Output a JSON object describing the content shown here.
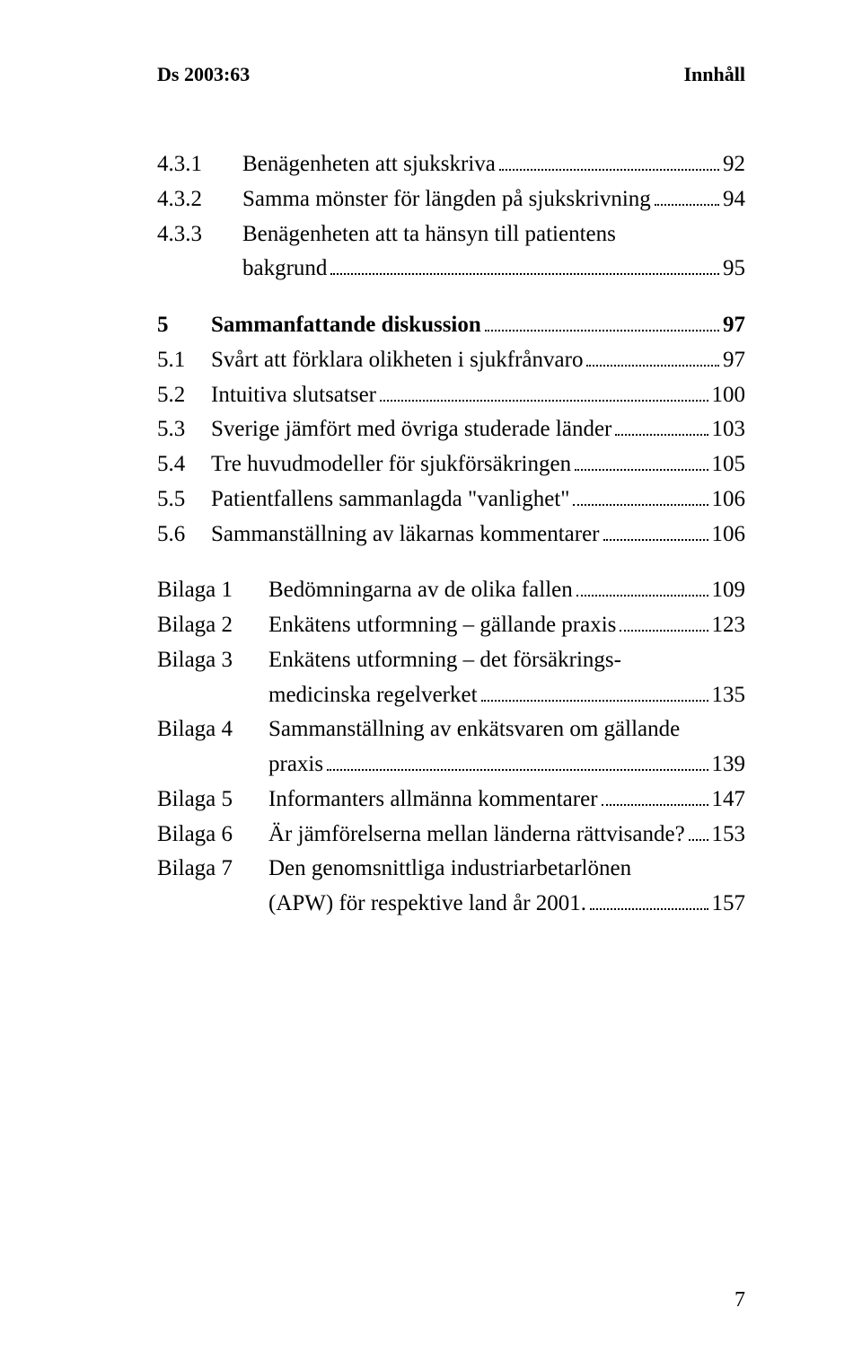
{
  "header": {
    "left": "Ds 2003:63",
    "right": "Innhåll"
  },
  "toc": [
    {
      "type": "row",
      "indent": "indent",
      "num": "4.3.1",
      "label": "Benägenheten att sjukskriva",
      "page": "92"
    },
    {
      "type": "row",
      "indent": "indent",
      "num": "4.3.2",
      "label": "Samma mönster för längden på sjukskrivning",
      "page": "94"
    },
    {
      "type": "row-multi",
      "indent": "indent",
      "num": "4.3.3",
      "lines": [
        "Benägenheten att ta hänsyn till patientens"
      ],
      "lastLabel": "bakgrund",
      "page": "95",
      "contClass": "cont2"
    },
    {
      "type": "gap"
    },
    {
      "type": "row",
      "bold": true,
      "num": "5",
      "label": "Sammanfattande diskussion",
      "page": "97"
    },
    {
      "type": "row",
      "num": "5.1",
      "label": "Svårt att förklara olikheten i sjukfrånvaro",
      "page": "97"
    },
    {
      "type": "row",
      "num": "5.2",
      "label": "Intuitiva slutsatser",
      "page": "100"
    },
    {
      "type": "row",
      "num": "5.3",
      "label": "Sverige jämfört med övriga studerade länder",
      "page": "103"
    },
    {
      "type": "row",
      "num": "5.4",
      "label": "Tre huvudmodeller för sjukförsäkringen",
      "page": "105"
    },
    {
      "type": "row",
      "num": "5.5",
      "label": "Patientfallens sammanlagda \"vanlighet\"",
      "page": "106"
    },
    {
      "type": "row",
      "num": "5.6",
      "label": "Sammanställning av läkarnas kommentarer",
      "page": "106"
    },
    {
      "type": "gap"
    },
    {
      "type": "row",
      "indent": "bilaga",
      "num": "Bilaga 1",
      "label": "Bedömningarna av de olika fallen",
      "page": "109"
    },
    {
      "type": "row",
      "indent": "bilaga",
      "num": "Bilaga 2",
      "label": "Enkätens utformning – gällande praxis",
      "page": "123"
    },
    {
      "type": "row-multi",
      "indent": "bilaga",
      "num": "Bilaga 3",
      "lines": [
        "Enkätens utformning – det försäkrings-"
      ],
      "lastLabel": "medicinska regelverket",
      "page": "135",
      "contClass": "cont"
    },
    {
      "type": "row-multi",
      "indent": "bilaga",
      "num": "Bilaga 4",
      "lines": [
        "Sammanställning av enkätsvaren om gällande"
      ],
      "lastLabel": "praxis",
      "page": "139",
      "contClass": "cont"
    },
    {
      "type": "row",
      "indent": "bilaga",
      "num": "Bilaga 5",
      "label": "Informanters allmänna kommentarer",
      "page": "147"
    },
    {
      "type": "row",
      "indent": "bilaga",
      "num": "Bilaga 6",
      "label": "Är jämförelserna mellan länderna rättvisande?",
      "page": "153"
    },
    {
      "type": "row-multi",
      "indent": "bilaga",
      "num": "Bilaga 7",
      "lines": [
        "Den genomsnittliga industriarbetarlönen"
      ],
      "lastLabel": "(APW) för respektive land år 2001.",
      "page": "157",
      "contClass": "cont"
    }
  ],
  "pageNumber": "7"
}
